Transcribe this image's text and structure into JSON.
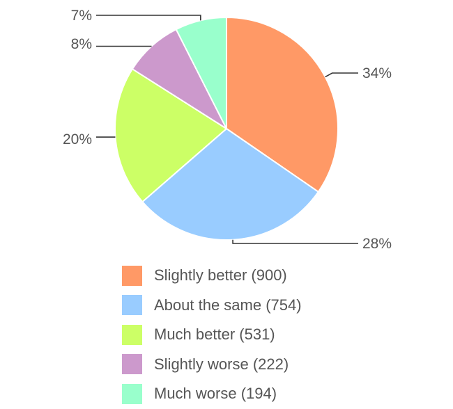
{
  "chart_data": {
    "type": "pie",
    "title": "",
    "legend_position": "bottom",
    "slices": [
      {
        "label": "Slightly better (900)",
        "value": 900,
        "percent_label": "34%",
        "color": "#ff9966"
      },
      {
        "label": "About the same (754)",
        "value": 754,
        "percent_label": "28%",
        "color": "#99ccff"
      },
      {
        "label": "Much better (531)",
        "value": 531,
        "percent_label": "20%",
        "color": "#ccff66"
      },
      {
        "label": "Slightly worse (222)",
        "value": 222,
        "percent_label": "8%",
        "color": "#cc99cc"
      },
      {
        "label": "Much worse (194)",
        "value": 194,
        "percent_label": "7%",
        "color": "#99ffcc"
      }
    ]
  }
}
